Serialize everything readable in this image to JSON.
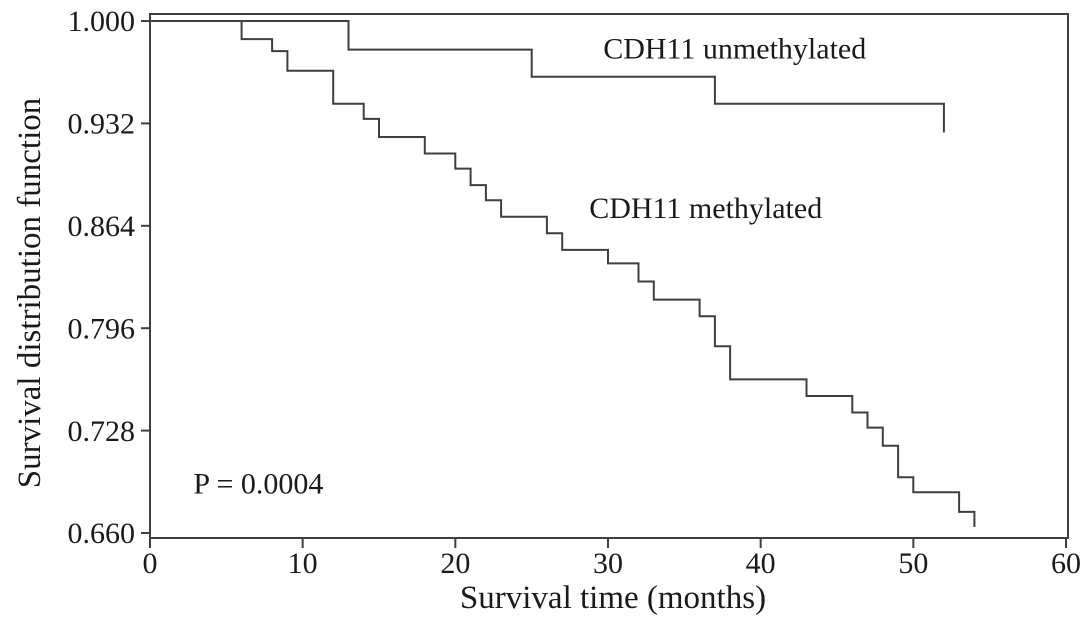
{
  "figure": {
    "background": "#ffffff",
    "p_value_label": "P = 0.0004"
  },
  "chart_data": {
    "type": "line",
    "variant": "kaplan_meier_step",
    "title": "",
    "xlabel": "Survival time (months)",
    "ylabel": "Survival distribution function",
    "xlim": [
      0,
      60
    ],
    "ylim": [
      0.66,
      1.0
    ],
    "x_ticks": [
      0,
      10,
      20,
      30,
      40,
      50,
      60
    ],
    "x_tick_labels": [
      "0",
      "10",
      "20",
      "30",
      "40",
      "50",
      "60"
    ],
    "y_ticks": [
      1.0,
      0.932,
      0.864,
      0.796,
      0.728,
      0.66
    ],
    "y_tick_labels": [
      "1.000",
      "0.932",
      "0.864",
      "0.796",
      "0.728",
      "0.660"
    ],
    "grid": false,
    "frame": true,
    "legend_position": "inline-annotations",
    "line_color": "#3f3f3f",
    "text_color": "#1a1a1a",
    "series": [
      {
        "name": "CDH11 unmethylated",
        "slug": "unmethylated",
        "start": [
          0,
          1.0
        ],
        "drops": [
          [
            13,
            0.981
          ],
          [
            25,
            0.963
          ],
          [
            37,
            0.945
          ],
          [
            52,
            0.926
          ]
        ]
      },
      {
        "name": "CDH11 methylated",
        "slug": "methylated",
        "start": [
          0,
          1.0
        ],
        "drops": [
          [
            6,
            0.988
          ],
          [
            8,
            0.98
          ],
          [
            9,
            0.967
          ],
          [
            12,
            0.945
          ],
          [
            14,
            0.935
          ],
          [
            15,
            0.923
          ],
          [
            18,
            0.912
          ],
          [
            20,
            0.902
          ],
          [
            21,
            0.891
          ],
          [
            22,
            0.881
          ],
          [
            23,
            0.87
          ],
          [
            26,
            0.859
          ],
          [
            27,
            0.848
          ],
          [
            30,
            0.839
          ],
          [
            32,
            0.827
          ],
          [
            33,
            0.815
          ],
          [
            36,
            0.804
          ],
          [
            37,
            0.784
          ],
          [
            38,
            0.762
          ],
          [
            43,
            0.751
          ],
          [
            46,
            0.74
          ],
          [
            47,
            0.73
          ],
          [
            48,
            0.718
          ],
          [
            49,
            0.697
          ],
          [
            50,
            0.687
          ],
          [
            53,
            0.674
          ],
          [
            54,
            0.664
          ]
        ]
      }
    ],
    "annotations": [
      {
        "slug": "unmethylated-curve-label",
        "text": "CDH11 unmethylated",
        "t": 38.3,
        "s": 0.982
      },
      {
        "slug": "methylated-curve-label",
        "text": "CDH11 methylated",
        "t": 36.4,
        "s": 0.876
      },
      {
        "slug": "p-value-label",
        "text": "P = 0.0004",
        "t": 7.1,
        "s": 0.693
      }
    ]
  }
}
